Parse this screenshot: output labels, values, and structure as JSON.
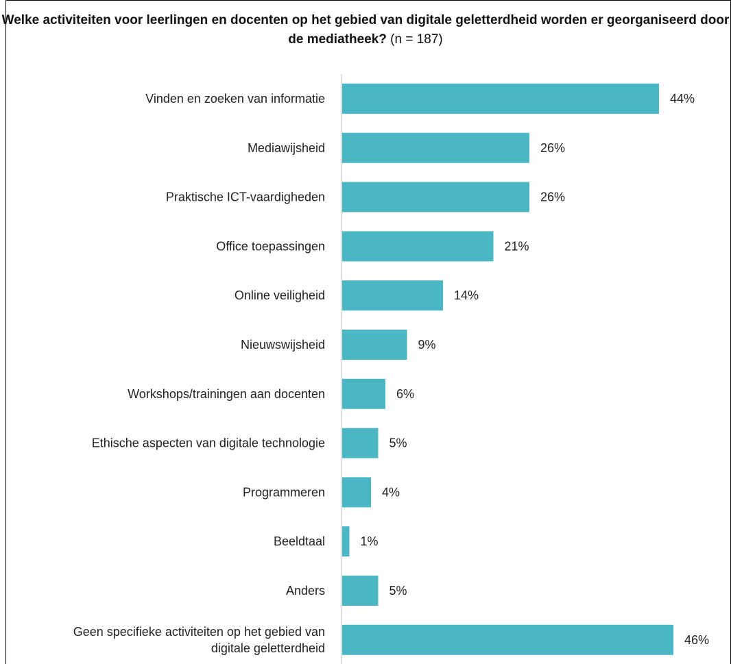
{
  "chart_data": {
    "type": "bar",
    "orientation": "horizontal",
    "title_bold": "Welke activiteiten voor leerlingen en docenten op het gebied van digitale geletterdheid worden er georganiseerd door de mediatheek?",
    "title_normal": "(n = 187)",
    "categories": [
      "Vinden en zoeken van informatie",
      "Mediawijsheid",
      "Praktische ICT-vaardigheden",
      "Office toepassingen",
      "Online veiligheid",
      "Nieuwswijsheid",
      "Workshops/trainingen aan docenten",
      "Ethische aspecten van digitale technologie",
      "Programmeren",
      "Beeldtaal",
      "Anders",
      "Geen specifieke activiteiten op het gebied van digitale geletterdheid"
    ],
    "values": [
      44,
      26,
      26,
      21,
      14,
      9,
      6,
      5,
      4,
      1,
      5,
      46
    ],
    "value_labels": [
      "44%",
      "26%",
      "26%",
      "21%",
      "14%",
      "9%",
      "6%",
      "5%",
      "4%",
      "1%",
      "5%",
      "46%"
    ],
    "bar_color": "#4bb6c4",
    "axis_color": "#bfbfbf",
    "grid": false,
    "legend": "none"
  }
}
